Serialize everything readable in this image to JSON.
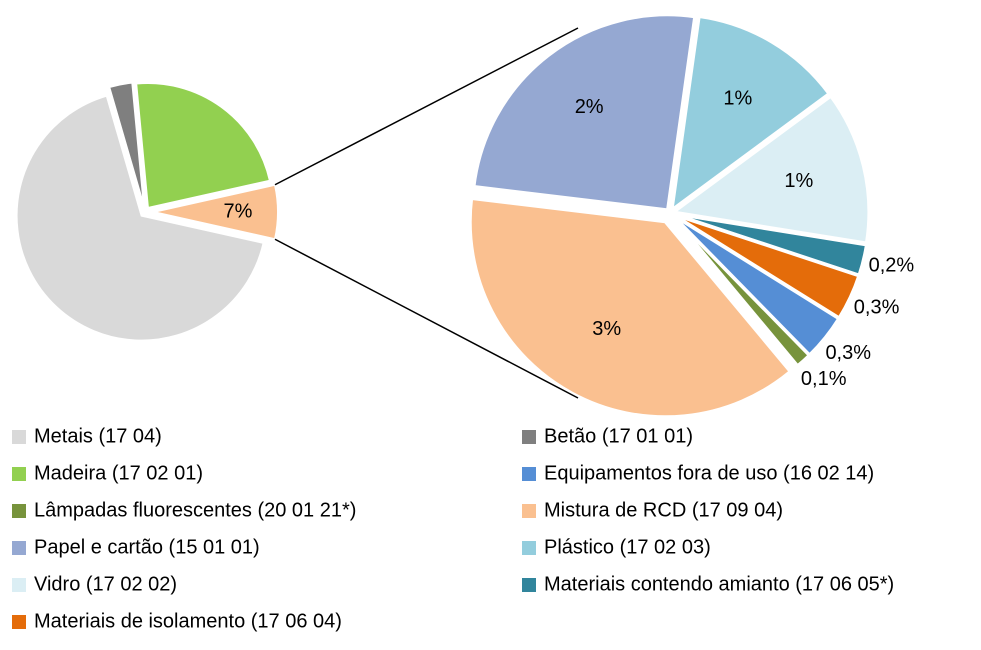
{
  "chart_data": {
    "type": "pie-of-pie",
    "slices": [
      {
        "name": "Metais (17 04)",
        "color": "#d9d9d9",
        "value": 67,
        "pie": "primary"
      },
      {
        "name": "Betão (17 01 01)",
        "color": "#7f7f7f",
        "value": 3,
        "pie": "primary"
      },
      {
        "name": "Madeira (17 02 01)",
        "color": "#92d050",
        "value": 23,
        "pie": "primary"
      },
      {
        "name": "Equipamentos fora de uso (16 02 14)",
        "color": "#558ed5",
        "value": 0.3,
        "value_label": "0,3%",
        "pie": "secondary"
      },
      {
        "name": "Lâmpadas fluorescentes (20 01 21*)",
        "color": "#77933c",
        "value": 0.1,
        "value_label": "0,1%",
        "pie": "secondary"
      },
      {
        "name": "Mistura de RCD (17 09 04)",
        "color": "#fac090",
        "value": 3,
        "value_label": "3%",
        "pie": "secondary"
      },
      {
        "name": "Papel e cartão (15 01 01)",
        "color": "#95a8d2",
        "value": 2,
        "value_label": "2%",
        "pie": "secondary"
      },
      {
        "name": "Plástico (17 02 03)",
        "color": "#93cddd",
        "value": 1,
        "value_label": "1%",
        "pie": "secondary"
      },
      {
        "name": "Vidro (17 02 02)",
        "color": "#dbeef4",
        "value": 1,
        "value_label": "1%",
        "pie": "secondary"
      },
      {
        "name": "Materiais contendo amianto (17 06 05*)",
        "color": "#31859c",
        "value": 0.2,
        "value_label": "0,2%",
        "pie": "secondary"
      },
      {
        "name": "Materiais de isolamento (17 06 04)",
        "color": "#e46c0a",
        "value": 0.3,
        "value_label": "0,3%",
        "pie": "secondary"
      }
    ],
    "other": {
      "value": 7,
      "value_label": "7%",
      "color": "#fac090"
    },
    "secondary_order": [
      7,
      8,
      9,
      10,
      3,
      4,
      5,
      6
    ]
  }
}
